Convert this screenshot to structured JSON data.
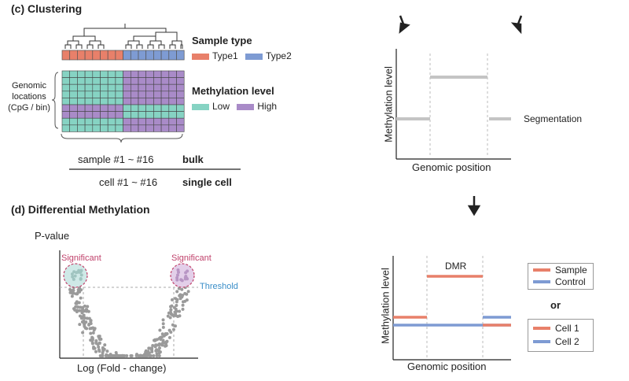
{
  "panel_c": {
    "title": "(c)  Clustering",
    "sample_type_label": "Sample type",
    "type1_label": "Type1",
    "type2_label": "Type2",
    "genomic_locations_label": "Genomic\nlocations\n(CpG / bin)",
    "methylation_level_label": "Methylation level",
    "low_label": "Low",
    "high_label": "High",
    "bulk_row_text": "sample #1 ~ #16",
    "bulk_label": "bulk",
    "sc_row_text": "cell #1 ~ #16",
    "sc_label": "single cell",
    "colors": {
      "type1": "#e8806a",
      "type2": "#7e9bd3",
      "low": "#86d3c3",
      "high": "#a98bc8"
    }
  },
  "panel_d": {
    "title": "(d)  Differential Methylation",
    "y_axis": "P-value",
    "x_axis": "Log (Fold - change)",
    "significant_left": "Significant",
    "significant_right": "Significant",
    "threshold": "Threshold",
    "colors": {
      "significant": "#c0416b",
      "threshold": "#3a8ec8"
    }
  },
  "segmentation_plot": {
    "y_axis": "Methylation level",
    "x_axis": "Genomic position",
    "segmentation_label": "Segmentation"
  },
  "dmr_plot": {
    "y_axis": "Methylation level",
    "x_axis": "Genomic position",
    "dmr_label": "DMR",
    "legend_top": [
      "Sample",
      "Control"
    ],
    "or_label": "or",
    "legend_bottom": [
      "Cell 1",
      "Cell 2"
    ],
    "colors": {
      "sample": "#e8806a",
      "control": "#7e9bd3"
    }
  }
}
